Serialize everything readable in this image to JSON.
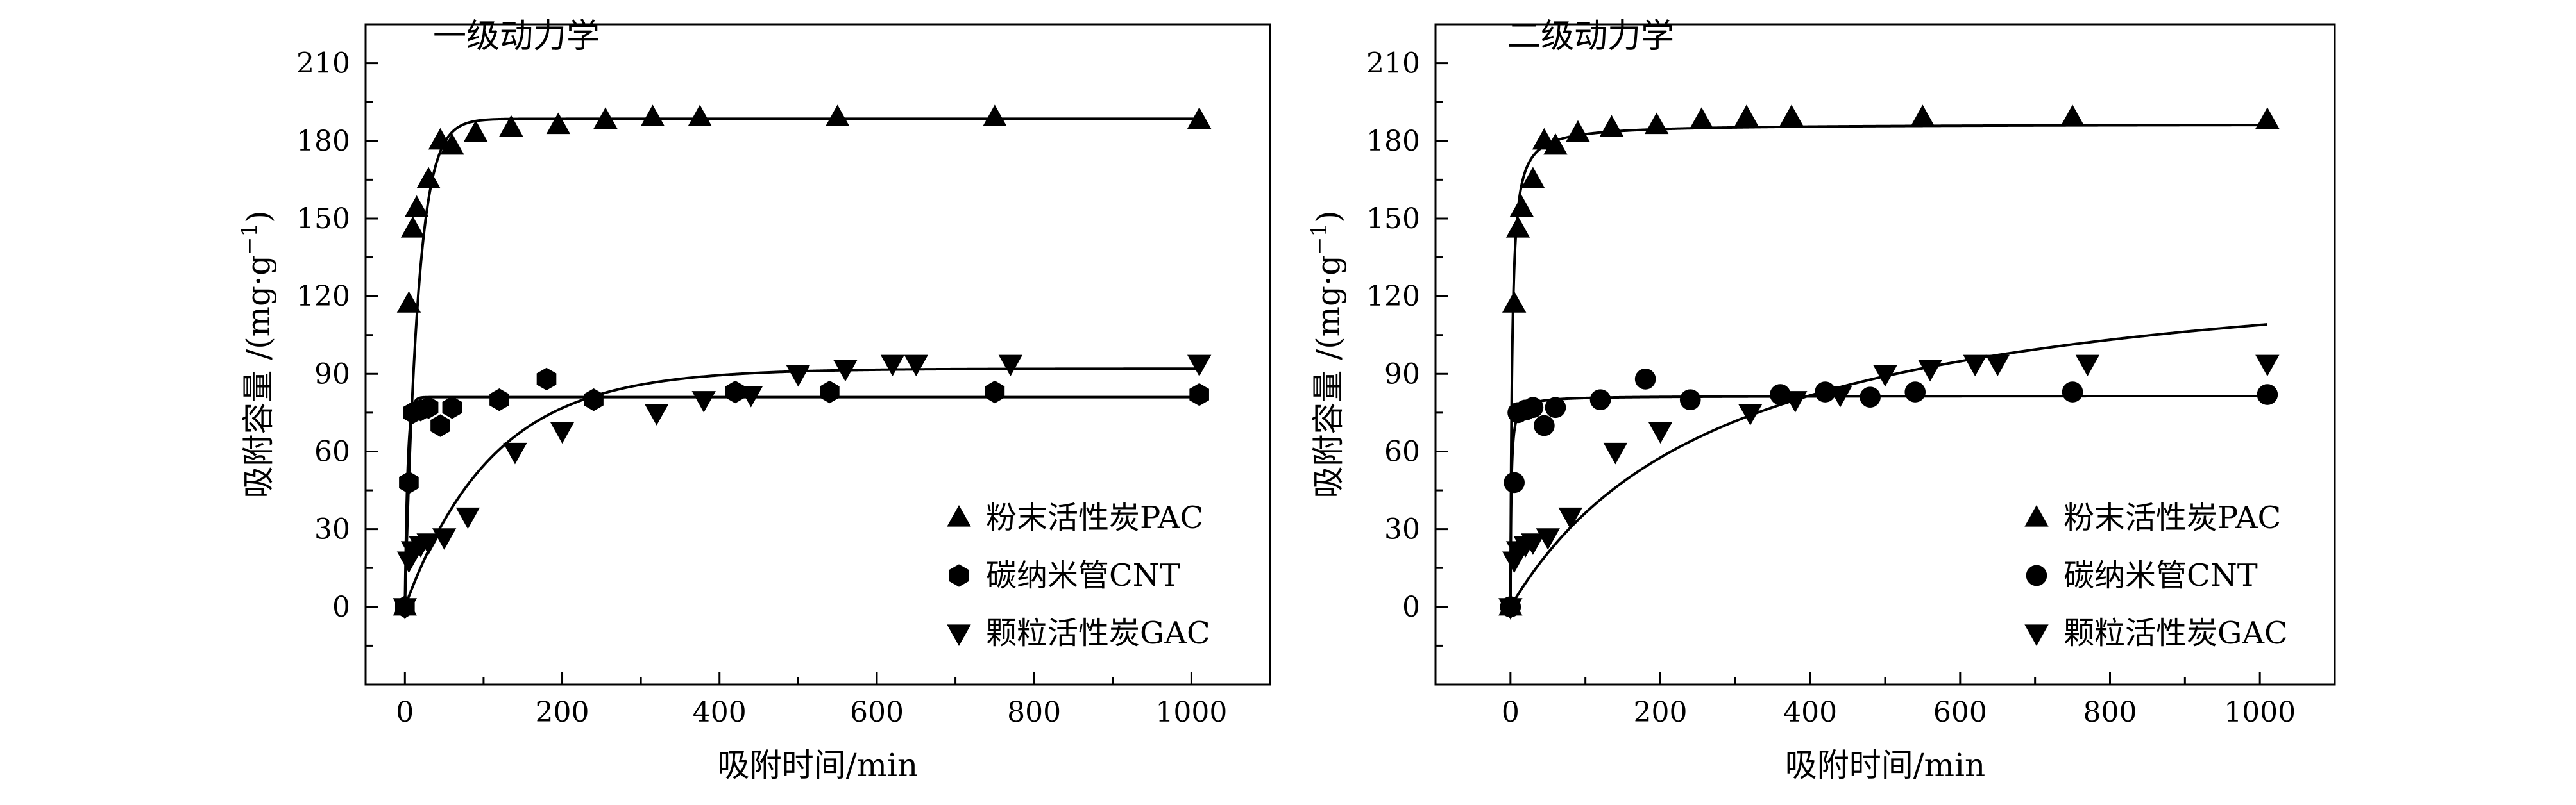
{
  "figure": {
    "width_note": "two-panel adsorption kinetics figure",
    "colors": {
      "ink": "#000000",
      "background": "#ffffff"
    }
  },
  "chart_data": [
    {
      "type": "scatter",
      "title": "一级动力学",
      "xlabel": "吸附时间/min",
      "ylabel_main": "吸附容量 /(mg·g",
      "ylabel_sup": "−1",
      "ylabel_close": ")",
      "xlim": [
        -50,
        1100
      ],
      "ylim": [
        -30,
        225
      ],
      "xticks": [
        0,
        200,
        400,
        600,
        800,
        1000
      ],
      "yticks": [
        0,
        30,
        60,
        90,
        120,
        150,
        180,
        210
      ],
      "series": [
        {
          "name": "粉末活性炭PAC",
          "marker": "triangle-up",
          "points": [
            [
              0,
              0
            ],
            [
              5,
              117
            ],
            [
              10,
              146
            ],
            [
              15,
              154
            ],
            [
              30,
              165
            ],
            [
              45,
              180
            ],
            [
              60,
              178
            ],
            [
              90,
              183
            ],
            [
              135,
              185
            ],
            [
              195,
              186
            ],
            [
              255,
              188
            ],
            [
              315,
              189
            ],
            [
              375,
              189
            ],
            [
              550,
              189
            ],
            [
              750,
              189
            ],
            [
              1010,
              188
            ]
          ],
          "fit": {
            "model": "pfo",
            "qe": 188.5,
            "k": 0.06
          }
        },
        {
          "name": "碳纳米管CNT",
          "marker": "hexagon",
          "points": [
            [
              0,
              0
            ],
            [
              5,
              48
            ],
            [
              10,
              75
            ],
            [
              20,
              76
            ],
            [
              30,
              77
            ],
            [
              45,
              70
            ],
            [
              60,
              77
            ],
            [
              120,
              80
            ],
            [
              180,
              88
            ],
            [
              240,
              80
            ],
            [
              420,
              83
            ],
            [
              540,
              83
            ],
            [
              750,
              83
            ],
            [
              1010,
              82
            ]
          ],
          "fit": {
            "model": "pfo",
            "qe": 81,
            "k": 0.3
          }
        },
        {
          "name": "颗粒活性炭GAC",
          "marker": "triangle-down",
          "points": [
            [
              0,
              0
            ],
            [
              5,
              18
            ],
            [
              10,
              22
            ],
            [
              20,
              24
            ],
            [
              30,
              25
            ],
            [
              50,
              27
            ],
            [
              80,
              35
            ],
            [
              140,
              60
            ],
            [
              200,
              68
            ],
            [
              320,
              75
            ],
            [
              380,
              80
            ],
            [
              440,
              82
            ],
            [
              500,
              90
            ],
            [
              560,
              92
            ],
            [
              620,
              94
            ],
            [
              650,
              94
            ],
            [
              770,
              94
            ],
            [
              1010,
              94
            ]
          ],
          "fit": {
            "model": "pfo",
            "qe": 92,
            "k": 0.009
          }
        }
      ],
      "legend": {
        "position": "bottom-right"
      }
    },
    {
      "type": "scatter",
      "title": "二级动力学",
      "xlabel": "吸附时间/min",
      "ylabel_main": "吸附容量 /(mg·g",
      "ylabel_sup": "−1",
      "ylabel_close": ")",
      "xlim": [
        -100,
        1100
      ],
      "ylim": [
        -30,
        225
      ],
      "xticks": [
        0,
        200,
        400,
        600,
        800,
        1000
      ],
      "yticks": [
        0,
        30,
        60,
        90,
        120,
        150,
        180,
        210
      ],
      "series": [
        {
          "name": "粉末活性炭PAC",
          "marker": "triangle-up",
          "points": [
            [
              0,
              0
            ],
            [
              5,
              117
            ],
            [
              10,
              146
            ],
            [
              15,
              154
            ],
            [
              30,
              165
            ],
            [
              45,
              180
            ],
            [
              60,
              178
            ],
            [
              90,
              183
            ],
            [
              135,
              185
            ],
            [
              195,
              186
            ],
            [
              255,
              188
            ],
            [
              315,
              189
            ],
            [
              375,
              189
            ],
            [
              550,
              189
            ],
            [
              750,
              189
            ],
            [
              1010,
              188
            ]
          ],
          "fit": {
            "model": "pso",
            "qe": 186.5,
            "k": 0.0025
          }
        },
        {
          "name": "碳纳米管CNT",
          "marker": "circle",
          "points": [
            [
              0,
              0
            ],
            [
              5,
              48
            ],
            [
              10,
              75
            ],
            [
              20,
              76
            ],
            [
              30,
              77
            ],
            [
              45,
              70
            ],
            [
              60,
              77
            ],
            [
              120,
              80
            ],
            [
              180,
              88
            ],
            [
              240,
              80
            ],
            [
              360,
              82
            ],
            [
              420,
              83
            ],
            [
              480,
              81
            ],
            [
              540,
              83
            ],
            [
              750,
              83
            ],
            [
              1010,
              82
            ]
          ],
          "fit": {
            "model": "pso",
            "qe": 81.5,
            "k": 0.012
          }
        },
        {
          "name": "颗粒活性炭GAC",
          "marker": "triangle-down",
          "points": [
            [
              0,
              0
            ],
            [
              5,
              18
            ],
            [
              10,
              22
            ],
            [
              20,
              24
            ],
            [
              30,
              25
            ],
            [
              50,
              27
            ],
            [
              80,
              35
            ],
            [
              140,
              60
            ],
            [
              200,
              68
            ],
            [
              320,
              75
            ],
            [
              380,
              80
            ],
            [
              440,
              82
            ],
            [
              500,
              90
            ],
            [
              560,
              92
            ],
            [
              620,
              94
            ],
            [
              650,
              94
            ],
            [
              770,
              94
            ],
            [
              1010,
              94
            ]
          ],
          "fit": {
            "model": "pso",
            "qe": 140,
            "k": 2.5e-05
          }
        }
      ],
      "legend": {
        "position": "bottom-right"
      }
    }
  ]
}
